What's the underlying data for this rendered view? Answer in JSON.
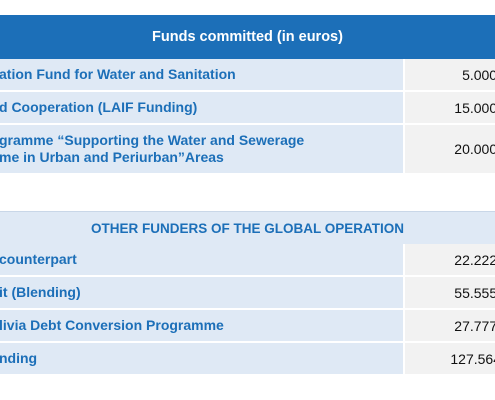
{
  "table1": {
    "header": "Funds committed (in euros)",
    "rows": [
      {
        "label": "ation Fund for Water and Sanitation",
        "value": "5.000."
      },
      {
        "label": "d Cooperation (LAIF Funding)",
        "value": "15.000."
      },
      {
        "label": "gramme “Supporting the Water and Sewerage\nme in Urban and Periurban”Areas",
        "value": "20.000."
      }
    ]
  },
  "table2": {
    "header": "OTHER FUNDERS OF THE GLOBAL OPERATION",
    "rows": [
      {
        "label": "counterpart",
        "value": "22.222."
      },
      {
        "label": "it (Blending)",
        "value": "55.555."
      },
      {
        "label": "livia Debt Conversion Programme",
        "value": "27.777."
      },
      {
        "label": "nding",
        "value": "127.564"
      }
    ]
  }
}
